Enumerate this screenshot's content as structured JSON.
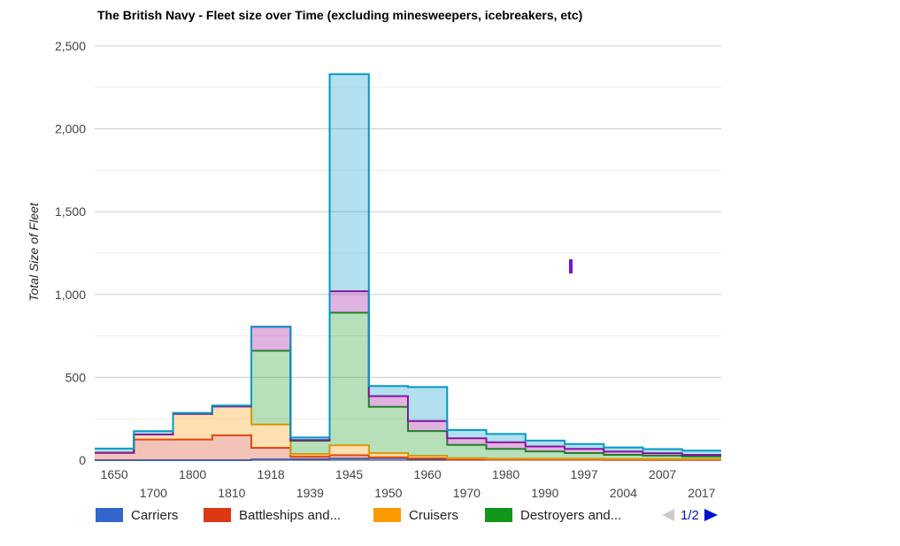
{
  "chart_data": {
    "type": "area",
    "title": "The British Navy - Fleet size over Time (excluding minesweepers, icebreakers, etc)",
    "ylabel": "Total Size of Fleet",
    "ylim": [
      0,
      2500
    ],
    "yticks": [
      0,
      500,
      1000,
      1500,
      2000,
      2500
    ],
    "ytick_labels": [
      "0",
      "500",
      "1,000",
      "1,500",
      "2,000",
      "2,500"
    ],
    "categories": [
      "1650",
      "1700",
      "1800",
      "1810",
      "1918",
      "1939",
      "1945",
      "1950",
      "1960",
      "1970",
      "1980",
      "1990",
      "1997",
      "2004",
      "2007",
      "2017"
    ],
    "series": [
      {
        "name": "Carriers",
        "color": "#3366cc",
        "values": [
          0,
          0,
          0,
          0,
          5,
          7,
          10,
          12,
          8,
          5,
          3,
          3,
          3,
          2,
          2,
          2
        ]
      },
      {
        "name": "Battleships and...",
        "color": "#dc3912",
        "values": [
          45,
          125,
          125,
          150,
          70,
          15,
          20,
          5,
          3,
          0,
          0,
          0,
          0,
          0,
          0,
          0
        ]
      },
      {
        "name": "Cruisers",
        "color": "#ff9900",
        "values": [
          0,
          30,
          155,
          175,
          140,
          15,
          60,
          25,
          15,
          7,
          5,
          5,
          5,
          5,
          5,
          5
        ]
      },
      {
        "name": "Destroyers and...",
        "color": "#109618",
        "values": [
          0,
          0,
          0,
          0,
          445,
          80,
          800,
          280,
          150,
          80,
          60,
          45,
          35,
          25,
          20,
          15
        ]
      },
      {
        "name": "",
        "color": "#990099",
        "values": [
          0,
          0,
          0,
          0,
          145,
          5,
          130,
          65,
          60,
          40,
          40,
          30,
          25,
          20,
          15,
          10
        ]
      },
      {
        "name": "",
        "color": "#0099c6",
        "values": [
          25,
          20,
          5,
          5,
          0,
          15,
          1310,
          60,
          205,
          50,
          50,
          35,
          30,
          25,
          25,
          25
        ]
      }
    ],
    "legend_position": "bottom",
    "grid": true,
    "stacked": true,
    "stepped": true
  },
  "legend": {
    "items": [
      "Carriers",
      "Battleships and...",
      "Cruisers",
      "Destroyers and..."
    ],
    "page": "1/2"
  }
}
